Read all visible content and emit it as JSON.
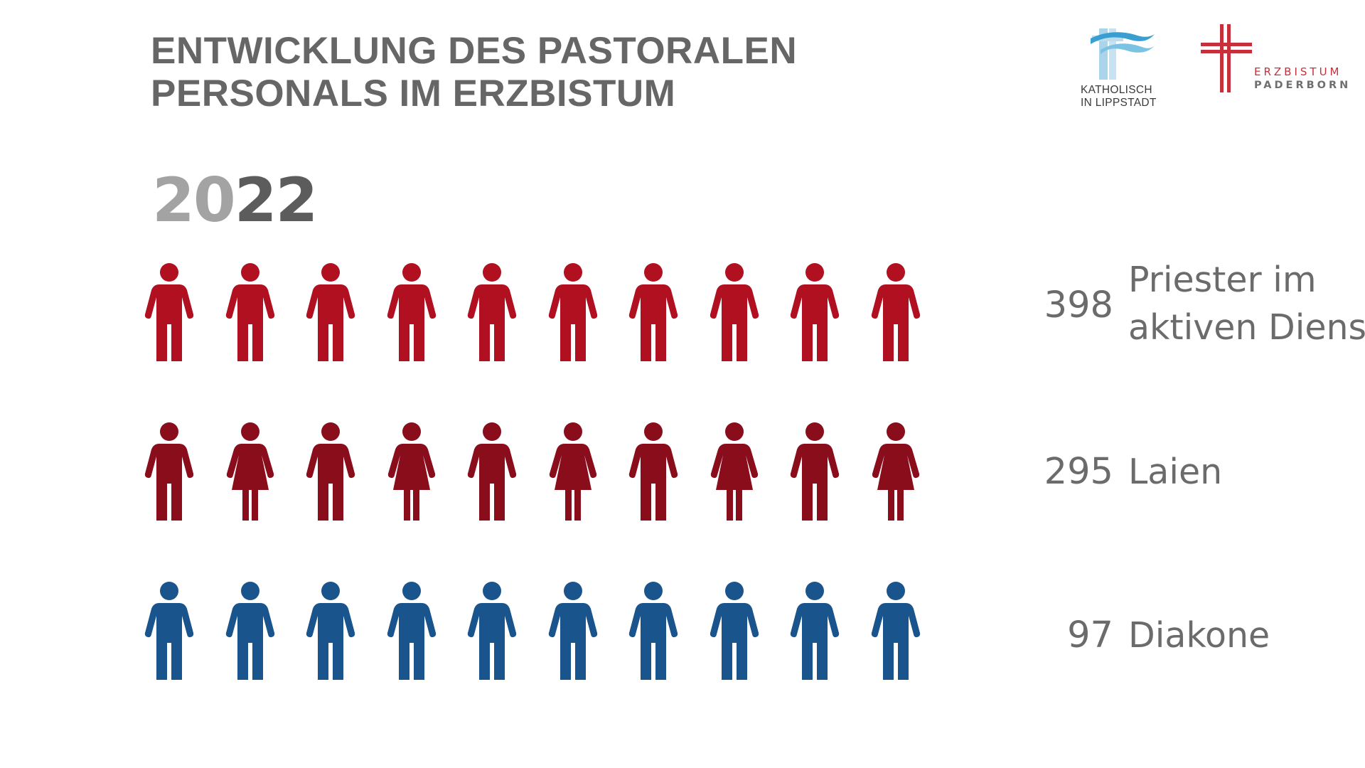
{
  "title": {
    "line1": "ENTWICKLUNG DES PASTORALEN",
    "line2": "PERSONALS IM ERZBISTUM"
  },
  "year": {
    "light": "20",
    "dark": "22"
  },
  "logos": {
    "katholisch": {
      "line1": "KATHOLISCH",
      "line2": "IN LIPPSTADT"
    },
    "erzbistum": {
      "line1": "ERZBISTUM",
      "line2": "PADERBORN"
    }
  },
  "rows": [
    {
      "count": "398",
      "label_line1": "Priester im",
      "label_line2": "aktiven Dienst",
      "color": "#b01020",
      "figures": [
        "male",
        "male",
        "male",
        "male",
        "male",
        "male",
        "male",
        "male",
        "male",
        "male"
      ]
    },
    {
      "count": "295",
      "label": "Laien",
      "color": "#8a0d1c",
      "figures": [
        "male",
        "female",
        "male",
        "female",
        "male",
        "female",
        "male",
        "female",
        "male",
        "female"
      ]
    },
    {
      "count": "97",
      "label": "Diakone",
      "color": "#1a548c",
      "figures": [
        "male",
        "male",
        "male",
        "male",
        "male",
        "male",
        "male",
        "male",
        "male",
        "male"
      ]
    }
  ],
  "colors": {
    "title": "#666666",
    "year_light": "#a3a3a3",
    "year_dark": "#5c5c5c",
    "label": "#6b6b6b",
    "cross_red": "#c5303a",
    "wave_blue": "#5fb3d6"
  }
}
